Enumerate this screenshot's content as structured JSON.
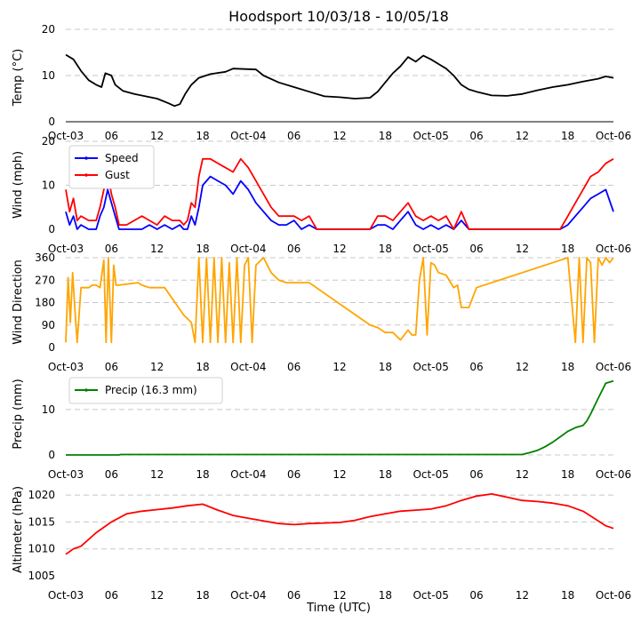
{
  "chart_data": {
    "title": "Hoodsport 10/03/18 - 10/05/18",
    "xlabel": "Time (UTC)",
    "x_range_hours": [
      0,
      72
    ],
    "x_ticks": [
      {
        "h": 0,
        "label": "Oct-03"
      },
      {
        "h": 6,
        "label": "06"
      },
      {
        "h": 12,
        "label": "12"
      },
      {
        "h": 18,
        "label": "18"
      },
      {
        "h": 24,
        "label": "Oct-04"
      },
      {
        "h": 30,
        "label": "06"
      },
      {
        "h": 36,
        "label": "12"
      },
      {
        "h": 42,
        "label": "18"
      },
      {
        "h": 48,
        "label": "Oct-05"
      },
      {
        "h": 54,
        "label": "06"
      },
      {
        "h": 60,
        "label": "12"
      },
      {
        "h": 66,
        "label": "18"
      },
      {
        "h": 72,
        "label": "Oct-06"
      }
    ],
    "panels": [
      {
        "id": "temp",
        "type": "line",
        "ylabel": "Temp (°C)",
        "ylim": [
          0,
          20
        ],
        "yticks": [
          0,
          10,
          20
        ],
        "series": [
          {
            "name": "Temp",
            "color": "#000000",
            "x": [
              0,
              1,
              2,
              3,
              4,
              4.7,
              5.2,
              6,
              6.5,
              7.5,
              9,
              10.5,
              12,
              13.5,
              14.3,
              15,
              15.7,
              16.5,
              17.5,
              19,
              21,
              22,
              25,
              26,
              28,
              30,
              32,
              34,
              36,
              38,
              40,
              41,
              42,
              43,
              44,
              45,
              46,
              47,
              48,
              49,
              50,
              51,
              52,
              53,
              54,
              56,
              58,
              60,
              62,
              64,
              66,
              68,
              70,
              71,
              72
            ],
            "y": [
              14.5,
              13.5,
              11,
              9,
              8,
              7.5,
              10.5,
              10,
              8,
              6.7,
              6,
              5.5,
              5,
              4,
              3.4,
              3.8,
              6,
              8,
              9.5,
              10.3,
              10.8,
              11.5,
              11.3,
              10,
              8.5,
              7.5,
              6.5,
              5.5,
              5.3,
              5,
              5.2,
              6.5,
              8.5,
              10.5,
              12,
              14,
              13,
              14.3,
              13.5,
              12.5,
              11.5,
              10,
              8,
              7,
              6.5,
              5.7,
              5.6,
              6,
              6.8,
              7.5,
              8,
              8.7,
              9.3,
              9.8,
              9.5
            ]
          }
        ]
      },
      {
        "id": "wind",
        "type": "line",
        "ylabel": "Wind (mph)",
        "ylim": [
          0,
          20
        ],
        "yticks": [
          0,
          10,
          20
        ],
        "legend": "upper-left",
        "series": [
          {
            "name": "Speed",
            "color": "#0000ff",
            "x": [
              0,
              0.5,
              1,
              1.5,
              2,
              3,
              4,
              4.5,
              5,
              5.5,
              6,
              6.5,
              7,
              8,
              9,
              10,
              11,
              12,
              13,
              14,
              15,
              15.5,
              16,
              16.5,
              17,
              17.5,
              18,
              19,
              20,
              21,
              22,
              23,
              24,
              25,
              26,
              27,
              28,
              29,
              30,
              31,
              32,
              33,
              34,
              36,
              38,
              40,
              41,
              42,
              43,
              44,
              45,
              46,
              47,
              48,
              49,
              50,
              51,
              52,
              53,
              54,
              56,
              58,
              60,
              62,
              64,
              65,
              66,
              67,
              68,
              69,
              70,
              71,
              72
            ],
            "y": [
              4,
              1,
              3,
              0,
              1,
              0,
              0,
              3,
              5,
              9,
              6,
              3,
              0,
              0,
              0,
              0,
              1,
              0,
              1,
              0,
              1,
              0,
              0,
              3,
              1,
              5,
              10,
              12,
              11,
              10,
              8,
              11,
              9,
              6,
              4,
              2,
              1,
              1,
              2,
              0,
              1,
              0,
              0,
              0,
              0,
              0,
              1,
              1,
              0,
              2,
              4,
              1,
              0,
              1,
              0,
              1,
              0,
              2,
              0,
              0,
              0,
              0,
              0,
              0,
              0,
              0,
              1,
              3,
              5,
              7,
              8,
              9,
              4
            ]
          },
          {
            "name": "Gust",
            "color": "#ff0000",
            "x": [
              0,
              0.5,
              1,
              1.5,
              2,
              3,
              4,
              4.5,
              5,
              5.5,
              6,
              6.5,
              7,
              8,
              9,
              10,
              11,
              12,
              13,
              14,
              15,
              15.5,
              16,
              16.5,
              17,
              17.5,
              18,
              19,
              20,
              21,
              22,
              23,
              24,
              25,
              26,
              27,
              28,
              29,
              30,
              31,
              32,
              33,
              34,
              36,
              38,
              40,
              41,
              42,
              43,
              44,
              45,
              46,
              47,
              48,
              49,
              50,
              51,
              52,
              53,
              54,
              56,
              58,
              60,
              62,
              64,
              65,
              66,
              67,
              68,
              69,
              70,
              71,
              72
            ],
            "y": [
              9,
              4,
              7,
              2,
              3,
              2,
              2,
              5,
              9,
              13,
              8,
              5,
              1,
              1,
              2,
              3,
              2,
              1,
              3,
              2,
              2,
              1,
              2,
              6,
              5,
              12,
              16,
              16,
              15,
              14,
              13,
              16,
              14,
              11,
              8,
              5,
              3,
              3,
              3,
              2,
              3,
              0,
              0,
              0,
              0,
              0,
              3,
              3,
              2,
              4,
              6,
              3,
              2,
              3,
              2,
              3,
              0,
              4,
              0,
              0,
              0,
              0,
              0,
              0,
              0,
              0,
              3,
              6,
              9,
              12,
              13,
              15,
              16
            ]
          }
        ]
      },
      {
        "id": "dir",
        "type": "line",
        "ylabel": "Wind Direction",
        "ylim": [
          0,
          360
        ],
        "yticks": [
          0,
          90,
          180,
          270,
          360
        ],
        "series": [
          {
            "name": "Direction",
            "color": "#ffa500",
            "x": [
              0,
              0.3,
              0.6,
              0.9,
              1.2,
              1.5,
              2,
              3,
              3.5,
              4,
              4.5,
              5,
              5.3,
              5.6,
              6,
              6.3,
              6.6,
              7,
              9.5,
              10,
              11,
              12,
              13,
              15.5,
              16.5,
              17,
              17.5,
              18,
              18.5,
              19,
              19.5,
              20,
              20.5,
              21,
              21.5,
              22,
              22.5,
              23,
              23.5,
              24,
              24.5,
              25,
              26,
              27,
              28,
              29,
              30,
              31,
              32,
              40,
              41,
              42,
              43,
              44,
              45,
              45.5,
              46,
              46.5,
              47,
              47.5,
              48,
              48.5,
              49,
              50,
              51,
              51.5,
              52,
              53,
              54,
              66,
              67,
              67.5,
              68,
              68.5,
              69,
              69.5,
              70,
              70.5,
              71,
              71.5,
              72
            ],
            "y": [
              20,
              280,
              100,
              300,
              150,
              20,
              240,
              240,
              250,
              250,
              240,
              350,
              20,
              360,
              20,
              330,
              250,
              250,
              260,
              250,
              240,
              240,
              240,
              130,
              100,
              20,
              360,
              20,
              360,
              20,
              360,
              20,
              360,
              20,
              340,
              20,
              360,
              20,
              330,
              360,
              20,
              330,
              360,
              300,
              270,
              260,
              260,
              260,
              260,
              90,
              80,
              60,
              60,
              30,
              70,
              50,
              50,
              270,
              360,
              50,
              340,
              330,
              300,
              290,
              240,
              250,
              160,
              160,
              240,
              360,
              20,
              360,
              20,
              360,
              340,
              20,
              360,
              330,
              360,
              340,
              360
            ]
          }
        ]
      },
      {
        "id": "precip",
        "type": "line",
        "ylabel": "Precip (mm)",
        "ylim": [
          0,
          18
        ],
        "yticks": [
          0,
          10
        ],
        "legend": "upper-left",
        "series": [
          {
            "name": "Precip (16.3 mm)",
            "color": "#008000",
            "x": [
              0,
              7,
              7.2,
              60,
              61,
              62,
              63,
              64,
              65,
              66,
              67,
              68,
              68.5,
              69,
              70,
              71,
              72
            ],
            "y": [
              0,
              0,
              0.1,
              0.1,
              0.5,
              1,
              1.8,
              2.8,
              4,
              5.2,
              6,
              6.5,
              7.5,
              9,
              12.5,
              15.8,
              16.3
            ]
          }
        ]
      },
      {
        "id": "alt",
        "type": "line",
        "ylabel": "Altimeter (hPa)",
        "ylim": [
          1005,
          1022
        ],
        "yticks": [
          1005,
          1010,
          1015,
          1020
        ],
        "series": [
          {
            "name": "Altimeter",
            "color": "#ff0000",
            "x": [
              0,
              1,
              2,
              4,
              6,
              8,
              10,
              12,
              14,
              16,
              18,
              20,
              22,
              24,
              26,
              28,
              30,
              32,
              34,
              36,
              38,
              40,
              42,
              44,
              46,
              48,
              50,
              52,
              54,
              56,
              58,
              60,
              62,
              64,
              66,
              68,
              70,
              71,
              72
            ],
            "y": [
              1009,
              1010,
              1010.5,
              1013,
              1015,
              1016.5,
              1017,
              1017.3,
              1017.6,
              1018,
              1018.3,
              1017.2,
              1016.2,
              1015.7,
              1015.2,
              1014.7,
              1014.5,
              1014.7,
              1014.8,
              1014.9,
              1015.3,
              1016,
              1016.5,
              1017,
              1017.2,
              1017.4,
              1018,
              1019,
              1019.8,
              1020.2,
              1019.6,
              1019,
              1018.8,
              1018.5,
              1018,
              1017,
              1015.2,
              1014.3,
              1013.8
            ]
          }
        ]
      }
    ]
  }
}
